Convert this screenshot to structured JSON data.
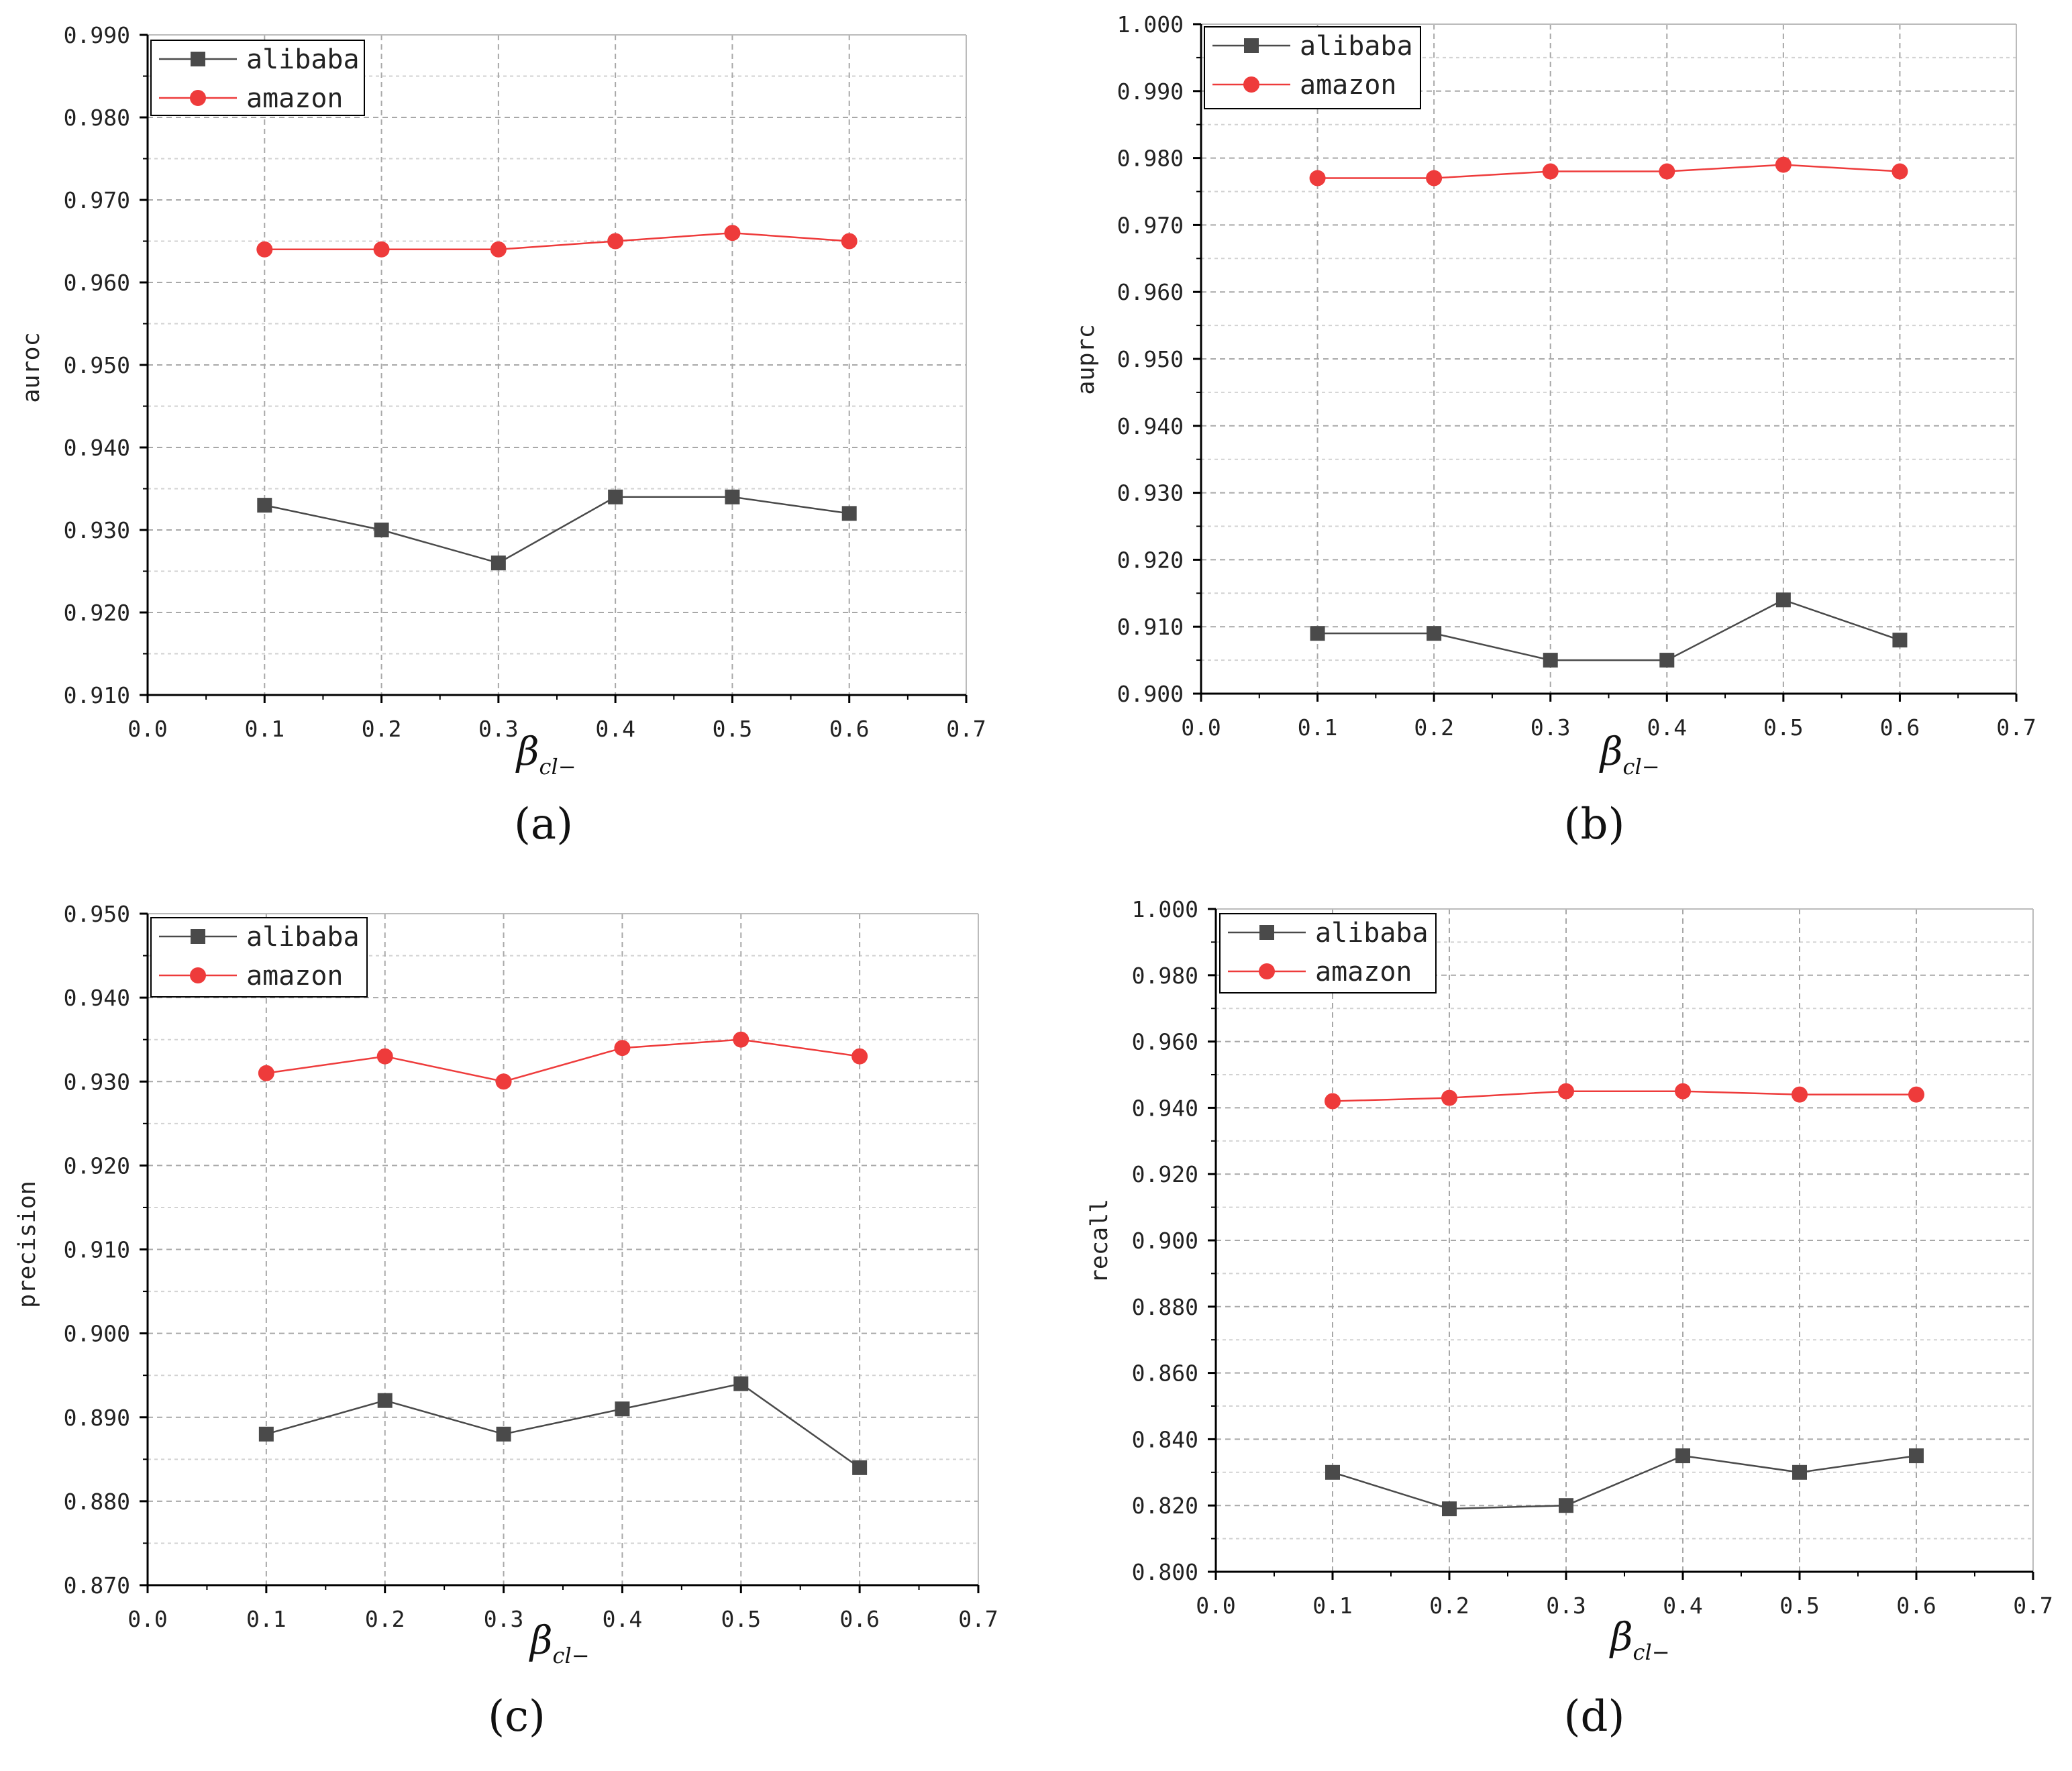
{
  "colors": {
    "alibaba": "#4a4a4a",
    "amazon": "#ee3b3b",
    "grid": "#a8a8a8",
    "axis": "#000000"
  },
  "chart_data": [
    {
      "type": "line",
      "panel_label": "(a)",
      "xlabel": "β_cl−",
      "ylabel": "auroc",
      "xlim": [
        0.0,
        0.7
      ],
      "ylim": [
        0.91,
        0.99
      ],
      "xticks": [
        "0.0",
        "0.1",
        "0.2",
        "0.3",
        "0.4",
        "0.5",
        "0.6",
        "0.7"
      ],
      "yticks": [
        "0.910",
        "0.920",
        "0.930",
        "0.940",
        "0.950",
        "0.960",
        "0.970",
        "0.980",
        "0.990"
      ],
      "x": [
        0.1,
        0.2,
        0.3,
        0.4,
        0.5,
        0.6
      ],
      "series": [
        {
          "name": "alibaba",
          "marker": "square",
          "values": [
            0.933,
            0.93,
            0.926,
            0.934,
            0.934,
            0.932
          ]
        },
        {
          "name": "amazon",
          "marker": "circle",
          "values": [
            0.964,
            0.964,
            0.964,
            0.965,
            0.966,
            0.965
          ]
        }
      ],
      "legend": "top-left",
      "grid": true
    },
    {
      "type": "line",
      "panel_label": "(b)",
      "xlabel": "β_cl−",
      "ylabel": "auprc",
      "xlim": [
        0.0,
        0.7
      ],
      "ylim": [
        0.9,
        1.0
      ],
      "xticks": [
        "0.0",
        "0.1",
        "0.2",
        "0.3",
        "0.4",
        "0.5",
        "0.6",
        "0.7"
      ],
      "yticks": [
        "0.900",
        "0.910",
        "0.920",
        "0.930",
        "0.940",
        "0.950",
        "0.960",
        "0.970",
        "0.980",
        "0.990",
        "1.000"
      ],
      "x": [
        0.1,
        0.2,
        0.3,
        0.4,
        0.5,
        0.6
      ],
      "series": [
        {
          "name": "alibaba",
          "marker": "square",
          "values": [
            0.909,
            0.909,
            0.905,
            0.905,
            0.914,
            0.908
          ]
        },
        {
          "name": "amazon",
          "marker": "circle",
          "values": [
            0.977,
            0.977,
            0.978,
            0.978,
            0.979,
            0.978
          ]
        }
      ],
      "legend": "top-left",
      "grid": true
    },
    {
      "type": "line",
      "panel_label": "(c)",
      "xlabel": "β_cl−",
      "ylabel": "precision",
      "xlim": [
        0.0,
        0.7
      ],
      "ylim": [
        0.87,
        0.95
      ],
      "xticks": [
        "0.0",
        "0.1",
        "0.2",
        "0.3",
        "0.4",
        "0.5",
        "0.6",
        "0.7"
      ],
      "yticks": [
        "0.870",
        "0.880",
        "0.890",
        "0.900",
        "0.910",
        "0.920",
        "0.930",
        "0.940",
        "0.950"
      ],
      "x": [
        0.1,
        0.2,
        0.3,
        0.4,
        0.5,
        0.6
      ],
      "series": [
        {
          "name": "alibaba",
          "marker": "square",
          "values": [
            0.888,
            0.892,
            0.888,
            0.891,
            0.894,
            0.884
          ]
        },
        {
          "name": "amazon",
          "marker": "circle",
          "values": [
            0.931,
            0.933,
            0.93,
            0.934,
            0.935,
            0.933
          ]
        }
      ],
      "legend": "top-left",
      "grid": true
    },
    {
      "type": "line",
      "panel_label": "(d)",
      "xlabel": "β_cl−",
      "ylabel": "recall",
      "xlim": [
        0.0,
        0.7
      ],
      "ylim": [
        0.8,
        1.0
      ],
      "xticks": [
        "0.0",
        "0.1",
        "0.2",
        "0.3",
        "0.4",
        "0.5",
        "0.6",
        "0.7"
      ],
      "yticks": [
        "0.800",
        "0.820",
        "0.840",
        "0.860",
        "0.880",
        "0.900",
        "0.920",
        "0.940",
        "0.960",
        "0.980",
        "1.000"
      ],
      "x": [
        0.1,
        0.2,
        0.3,
        0.4,
        0.5,
        0.6
      ],
      "series": [
        {
          "name": "alibaba",
          "marker": "square",
          "values": [
            0.83,
            0.819,
            0.82,
            0.835,
            0.83,
            0.835
          ]
        },
        {
          "name": "amazon",
          "marker": "circle",
          "values": [
            0.942,
            0.943,
            0.945,
            0.945,
            0.944,
            0.944
          ]
        }
      ],
      "legend": "top-left",
      "grid": true
    }
  ]
}
